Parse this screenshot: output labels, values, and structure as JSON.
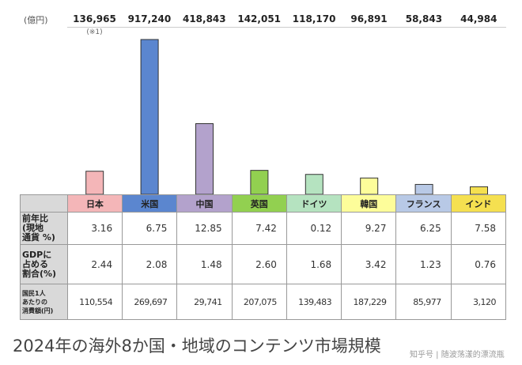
{
  "chart_data": {
    "type": "bar",
    "title": "2024年の海外8か国・地域のコンテンツ市場規模",
    "unit": "(億円)",
    "note": "(※1)",
    "categories": [
      "日本",
      "米国",
      "中国",
      "英国",
      "ドイツ",
      "韓国",
      "フランス",
      "インド"
    ],
    "values": [
      136965,
      917240,
      418843,
      142051,
      118170,
      96891,
      58843,
      44984
    ],
    "value_labels": [
      "136,965",
      "917,240",
      "418,843",
      "142,051",
      "118,170",
      "96,891",
      "58,843",
      "44,984"
    ],
    "colors": [
      "#f4b6b8",
      "#5b86cf",
      "#b3a2cc",
      "#92d050",
      "#b5e3c0",
      "#fdfd9a",
      "#b8c9e6",
      "#f5e050"
    ],
    "table": {
      "rows": [
        {
          "label": "前年比\n(現地\n通貨 %)",
          "values": [
            "3.16",
            "6.75",
            "12.85",
            "7.42",
            "0.12",
            "9.27",
            "6.25",
            "7.58"
          ]
        },
        {
          "label": "GDPに\n占める\n割合(%)",
          "values": [
            "2.44",
            "2.08",
            "1.48",
            "2.60",
            "1.68",
            "3.42",
            "1.23",
            "0.76"
          ]
        },
        {
          "label": "国民1人\nあたりの\n消費額(円)",
          "values": [
            "110,554",
            "269,697",
            "29,741",
            "207,075",
            "139,483",
            "187,229",
            "85,977",
            "3,120"
          ]
        }
      ]
    }
  },
  "watermark": "知乎号 | 随波荡漾的漂流瓶"
}
